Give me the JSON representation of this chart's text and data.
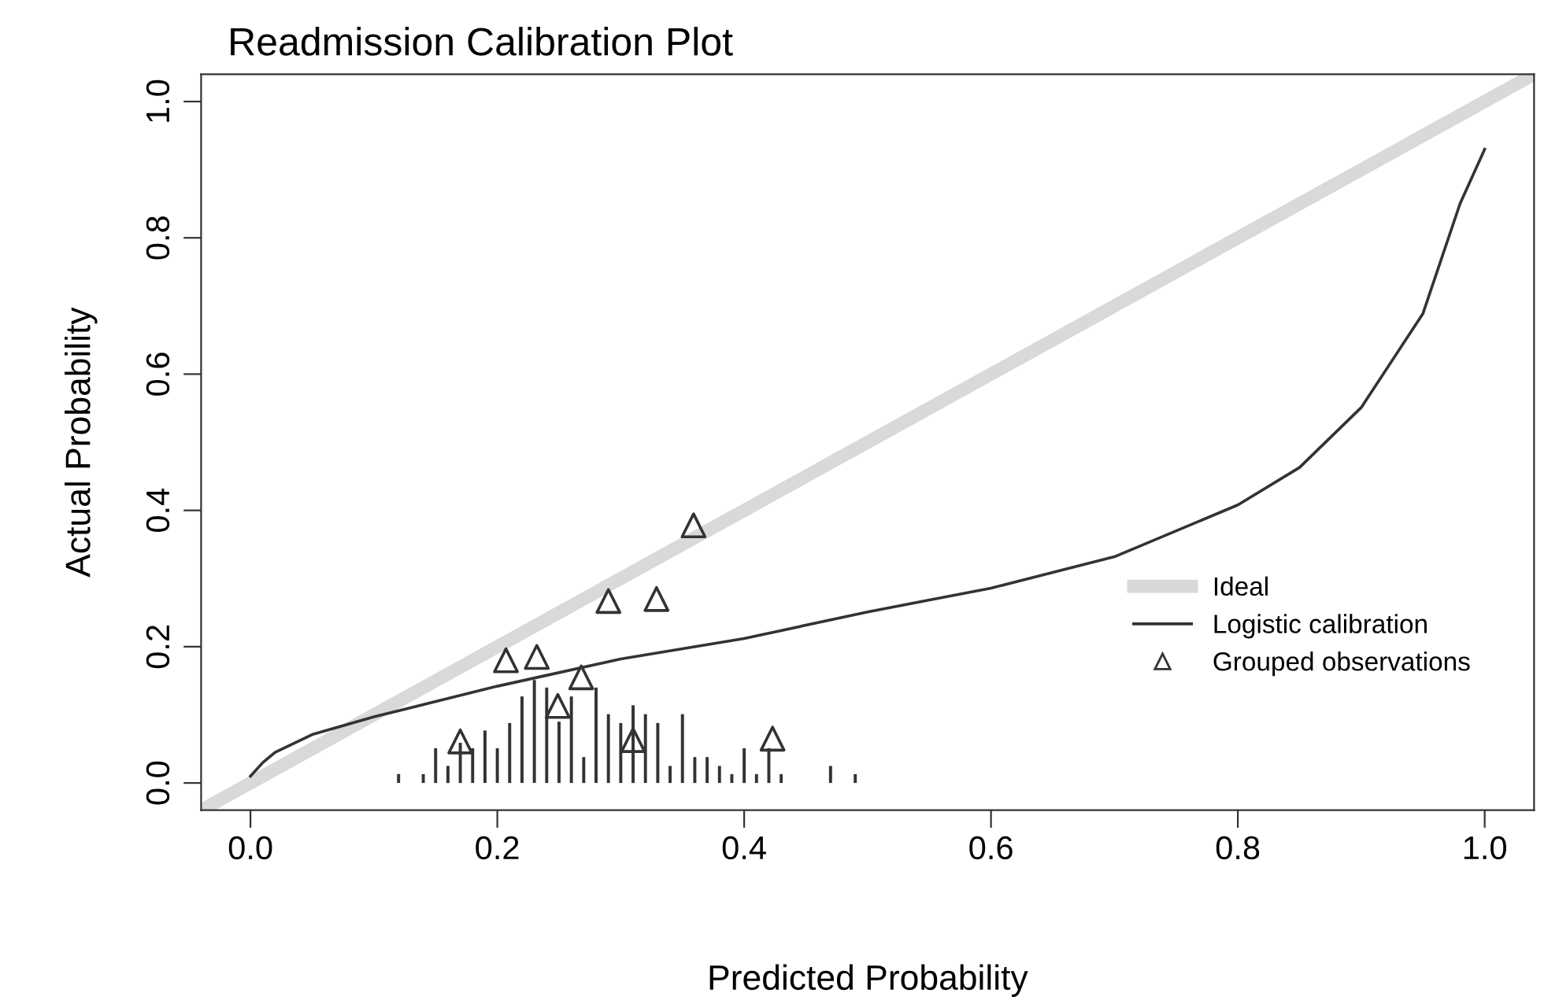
{
  "chart_data": {
    "type": "line",
    "title": "Readmission Calibration Plot",
    "xlabel": "Predicted Probability",
    "ylabel": "Actual Probability",
    "xlim": [
      -0.04,
      1.04
    ],
    "ylim": [
      -0.04,
      1.04
    ],
    "xticks": [
      {
        "value": 0,
        "label": "0.0"
      },
      0.2,
      0.4,
      0.6,
      0.8,
      {
        "value": 1,
        "label": "1.0"
      }
    ],
    "yticks": [
      {
        "value": 0,
        "label": "0.0"
      },
      0.2,
      0.4,
      0.6,
      0.8,
      {
        "value": 1,
        "label": "1.0"
      }
    ],
    "grid": false,
    "legend": "right",
    "series": [
      {
        "name": "Ideal",
        "color": "#d9d9d9",
        "x": [
          -0.04,
          1.04
        ],
        "values": [
          -0.04,
          1.04
        ]
      },
      {
        "name": "Logistic calibration",
        "color": "#333333",
        "x": [
          0,
          0.01,
          0.02,
          0.05,
          0.1,
          0.2,
          0.3,
          0.4,
          0.5,
          0.6,
          0.7,
          0.8,
          0.85,
          0.9,
          0.95,
          0.98,
          1.0
        ],
        "values": [
          0.01,
          0.03,
          0.045,
          0.071,
          0.097,
          0.142,
          0.182,
          0.212,
          0.251,
          0.286,
          0.332,
          0.408,
          0.463,
          0.551,
          0.689,
          0.85,
          0.93
        ]
      },
      {
        "name": "Grouped observations",
        "type": "scatter",
        "marker": "triangle",
        "color": "#333333",
        "x": [
          0.17,
          0.207,
          0.232,
          0.249,
          0.268,
          0.29,
          0.31,
          0.329,
          0.359,
          0.423
        ],
        "values": [
          0.061,
          0.18,
          0.185,
          0.113,
          0.155,
          0.267,
          0.063,
          0.27,
          0.378,
          0.065
        ]
      },
      {
        "type": "bar",
        "color": "#333333",
        "x": [
          0.12,
          0.14,
          0.15,
          0.16,
          0.17,
          0.18,
          0.19,
          0.2,
          0.21,
          0.22,
          0.23,
          0.24,
          0.25,
          0.26,
          0.27,
          0.28,
          0.29,
          0.3,
          0.31,
          0.32,
          0.33,
          0.34,
          0.35,
          0.36,
          0.37,
          0.38,
          0.39,
          0.4,
          0.41,
          0.42,
          0.43,
          0.47,
          0.49
        ],
        "values": [
          0.013,
          0.013,
          0.051,
          0.025,
          0.059,
          0.051,
          0.077,
          0.051,
          0.088,
          0.127,
          0.151,
          0.14,
          0.09,
          0.127,
          0.038,
          0.14,
          0.101,
          0.088,
          0.114,
          0.101,
          0.088,
          0.025,
          0.101,
          0.038,
          0.038,
          0.025,
          0.013,
          0.051,
          0.013,
          0.051,
          0.013,
          0.025,
          0.013
        ]
      }
    ]
  }
}
